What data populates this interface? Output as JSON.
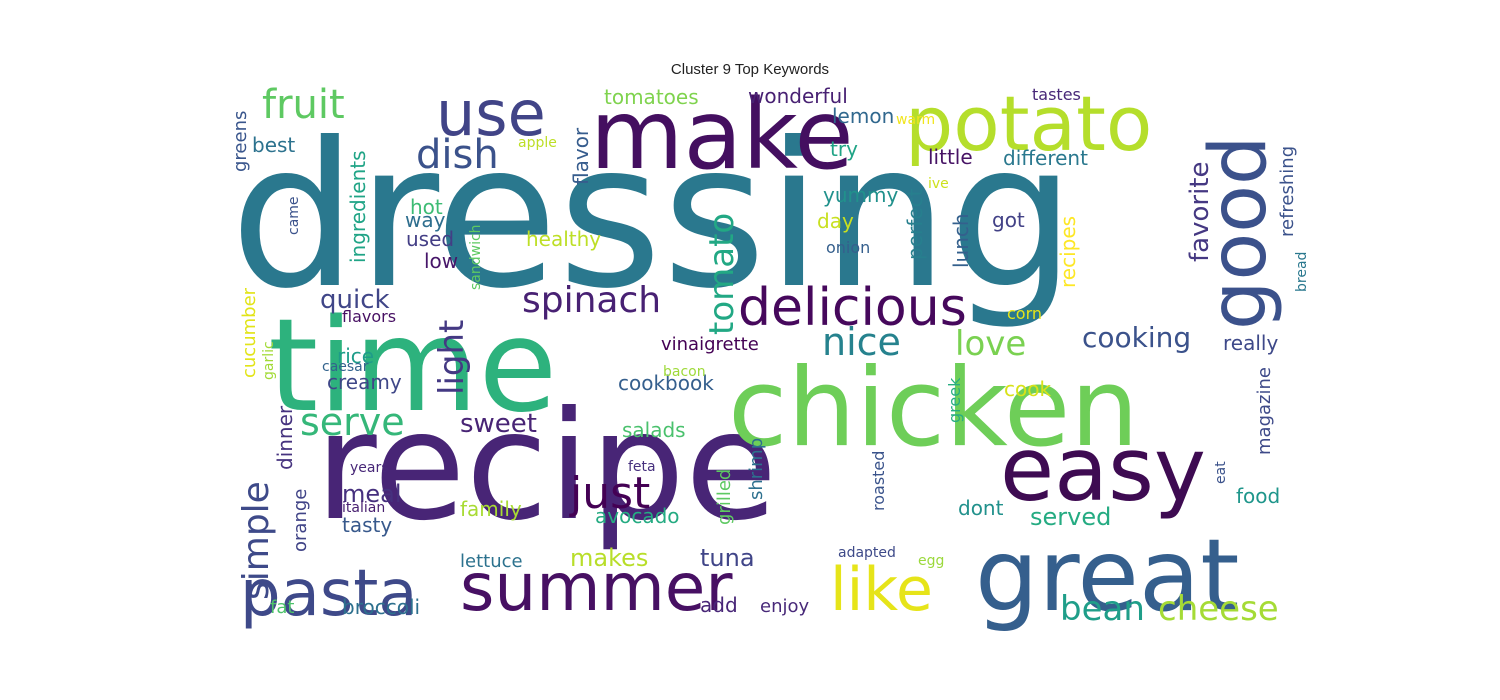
{
  "title": "Cluster 9 Top Keywords",
  "palette": "viridis",
  "words": [
    {
      "text": "dressing",
      "color": "#2a788e"
    },
    {
      "text": "recipe",
      "color": "#482576"
    },
    {
      "text": "time",
      "color": "#2db27d"
    },
    {
      "text": "chicken",
      "color": "#6ece58"
    },
    {
      "text": "great",
      "color": "#355f8d"
    },
    {
      "text": "make",
      "color": "#440f60"
    },
    {
      "text": "easy",
      "color": "#3e0b52"
    },
    {
      "text": "potato",
      "color": "#b5de2b"
    },
    {
      "text": "good",
      "color": "#3b518b"
    },
    {
      "text": "summer",
      "color": "#471063"
    },
    {
      "text": "pasta",
      "color": "#3e4989"
    },
    {
      "text": "use",
      "color": "#414487"
    },
    {
      "text": "delicious",
      "color": "#46085c"
    },
    {
      "text": "like",
      "color": "#e6e419"
    },
    {
      "text": "fruit",
      "color": "#5ec962"
    },
    {
      "text": "dish",
      "color": "#3b528b"
    },
    {
      "text": "spinach",
      "color": "#482173"
    },
    {
      "text": "just",
      "color": "#440154"
    },
    {
      "text": "simple",
      "color": "#3e4a89"
    },
    {
      "text": "serve",
      "color": "#35b779"
    },
    {
      "text": "light",
      "color": "#443983"
    },
    {
      "text": "tomato",
      "color": "#22a884"
    },
    {
      "text": "nice",
      "color": "#26828e"
    },
    {
      "text": "love",
      "color": "#7ad151"
    },
    {
      "text": "bean",
      "color": "#1f9e89"
    },
    {
      "text": "cheese",
      "color": "#a5db36"
    },
    {
      "text": "cooking",
      "color": "#3b528b"
    },
    {
      "text": "quick",
      "color": "#404688"
    },
    {
      "text": "tomatoes",
      "color": "#7fd34e"
    },
    {
      "text": "wonderful",
      "color": "#482173"
    },
    {
      "text": "favorite",
      "color": "#453882"
    },
    {
      "text": "sweet",
      "color": "#482475"
    },
    {
      "text": "different",
      "color": "#2a788e"
    },
    {
      "text": "lemon",
      "color": "#31688e"
    },
    {
      "text": "little",
      "color": "#471365"
    },
    {
      "text": "best",
      "color": "#2c728e"
    },
    {
      "text": "try",
      "color": "#20a486"
    },
    {
      "text": "yummy",
      "color": "#21918c"
    },
    {
      "text": "tasty",
      "color": "#38598c"
    },
    {
      "text": "meal",
      "color": "#46307e"
    },
    {
      "text": "greens",
      "color": "#39558c"
    },
    {
      "text": "ingredients",
      "color": "#20a486"
    },
    {
      "text": "flavor",
      "color": "#365c8d"
    },
    {
      "text": "hot",
      "color": "#3dbc74"
    },
    {
      "text": "way",
      "color": "#2e6e8e"
    },
    {
      "text": "used",
      "color": "#433e85"
    },
    {
      "text": "low",
      "color": "#471669"
    },
    {
      "text": "healthy",
      "color": "#bddf26"
    },
    {
      "text": "day",
      "color": "#c8e020"
    },
    {
      "text": "perfect",
      "color": "#277f8e"
    },
    {
      "text": "lunch",
      "color": "#34608d"
    },
    {
      "text": "got",
      "color": "#424186"
    },
    {
      "text": "recipes",
      "color": "#fde725"
    },
    {
      "text": "refreshing",
      "color": "#3b528b"
    },
    {
      "text": "vinaigrette",
      "color": "#440154"
    },
    {
      "text": "cookbook",
      "color": "#355f8d"
    },
    {
      "text": "creamy",
      "color": "#3f4788"
    },
    {
      "text": "rice",
      "color": "#1e9c89"
    },
    {
      "text": "really",
      "color": "#3e4989"
    },
    {
      "text": "cucumber",
      "color": "#e2e418"
    },
    {
      "text": "garlic",
      "color": "#a2da37"
    },
    {
      "text": "caesar",
      "color": "#33638d"
    },
    {
      "text": "flavors",
      "color": "#471063"
    },
    {
      "text": "bacon",
      "color": "#9fda3a"
    },
    {
      "text": "cook",
      "color": "#d8e219"
    },
    {
      "text": "greek",
      "color": "#27ad81"
    },
    {
      "text": "magazine",
      "color": "#3e4a89"
    },
    {
      "text": "food",
      "color": "#1f968b"
    },
    {
      "text": "served",
      "color": "#25ab82"
    },
    {
      "text": "dont",
      "color": "#21918c"
    },
    {
      "text": "salads",
      "color": "#4ac16d"
    },
    {
      "text": "dinner",
      "color": "#46337f"
    },
    {
      "text": "orange",
      "color": "#414487"
    },
    {
      "text": "years",
      "color": "#482878"
    },
    {
      "text": "italian",
      "color": "#481f70"
    },
    {
      "text": "family",
      "color": "#a8db34"
    },
    {
      "text": "avocado",
      "color": "#25ab82"
    },
    {
      "text": "grilled",
      "color": "#5ec962"
    },
    {
      "text": "shrimp",
      "color": "#2d708e"
    },
    {
      "text": "roasted",
      "color": "#3a538b"
    },
    {
      "text": "feta",
      "color": "#46307e"
    },
    {
      "text": "tuna",
      "color": "#404588"
    },
    {
      "text": "makes",
      "color": "#b8de29"
    },
    {
      "text": "lettuce",
      "color": "#2c728e"
    },
    {
      "text": "broccoli",
      "color": "#2d708e"
    },
    {
      "text": "fat",
      "color": "#4ec36b"
    },
    {
      "text": "add",
      "color": "#482677"
    },
    {
      "text": "enjoy",
      "color": "#482979"
    },
    {
      "text": "adapted",
      "color": "#3e4a89"
    },
    {
      "text": "egg",
      "color": "#9bd93c"
    },
    {
      "text": "eat",
      "color": "#3b528b"
    },
    {
      "text": "bread",
      "color": "#2a788e"
    },
    {
      "text": "onion",
      "color": "#355f8d"
    },
    {
      "text": "corn",
      "color": "#e5e419"
    },
    {
      "text": "ive",
      "color": "#cde11d"
    },
    {
      "text": "sandwich",
      "color": "#5ec962"
    },
    {
      "text": "came",
      "color": "#3b528b"
    },
    {
      "text": "apple",
      "color": "#bddf26"
    },
    {
      "text": "warm",
      "color": "#f1e51d"
    },
    {
      "text": "tastes",
      "color": "#482878"
    }
  ]
}
